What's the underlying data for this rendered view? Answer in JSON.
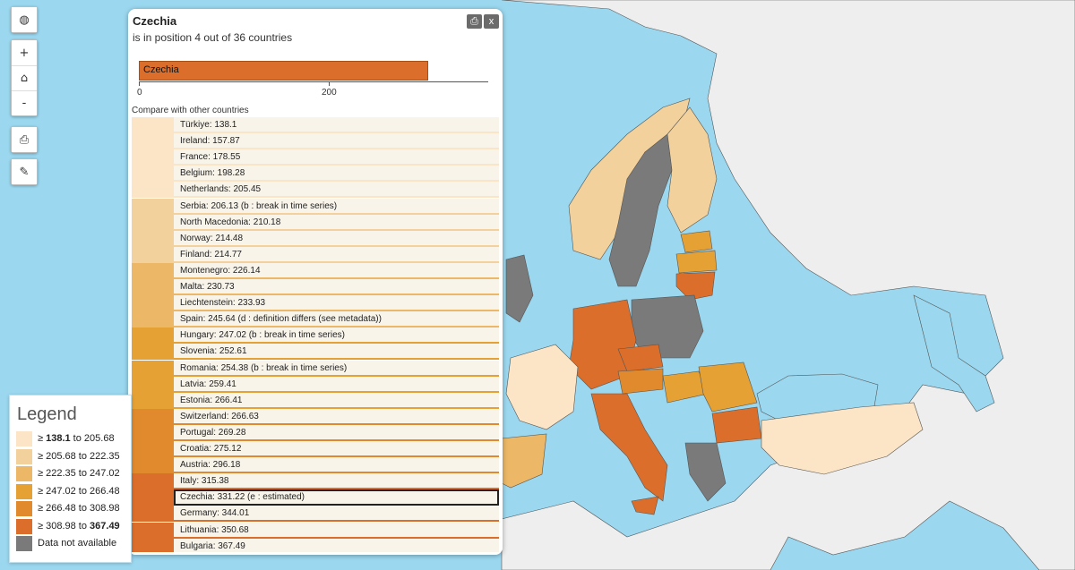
{
  "panel": {
    "title": "Czechia",
    "subtitle": "is in position 4 out of 36 countries",
    "print_icon": "printer-icon",
    "close_label": "x",
    "compare_label": "Compare with other countries",
    "bar": {
      "label": "Czechia",
      "value": 331.22,
      "axis_max": 400,
      "ticks": [
        "0",
        "200"
      ]
    }
  },
  "rows": [
    {
      "label": "Türkiye: 138.1",
      "color": "#fbe5c6"
    },
    {
      "label": "Ireland: 157.87",
      "color": "#fbe5c6"
    },
    {
      "label": "France: 178.55",
      "color": "#fbe5c6"
    },
    {
      "label": "Belgium: 198.28",
      "color": "#fbe5c6"
    },
    {
      "label": "Netherlands: 205.45",
      "color": "#fbe5c6"
    },
    {
      "label": "Serbia: 206.13 (b : break in time series)",
      "color": "#f2d19c"
    },
    {
      "label": "North Macedonia: 210.18",
      "color": "#f2d19c"
    },
    {
      "label": "Norway: 214.48",
      "color": "#f2d19c"
    },
    {
      "label": "Finland: 214.77",
      "color": "#f2d19c"
    },
    {
      "label": "Montenegro: 226.14",
      "color": "#ecb867"
    },
    {
      "label": "Malta: 230.73",
      "color": "#ecb867"
    },
    {
      "label": "Liechtenstein: 233.93",
      "color": "#ecb867"
    },
    {
      "label": "Spain: 245.64 (d : definition differs (see metadata))",
      "color": "#ecb867"
    },
    {
      "label": "Hungary: 247.02 (b : break in time series)",
      "color": "#e5a134"
    },
    {
      "label": "Slovenia: 252.61",
      "color": "#e5a134"
    },
    {
      "label": "Romania: 254.38 (b : break in time series)",
      "color": "#e5a134"
    },
    {
      "label": "Latvia: 259.41",
      "color": "#e5a134"
    },
    {
      "label": "Estonia: 266.41",
      "color": "#e5a134"
    },
    {
      "label": "Switzerland: 266.63",
      "color": "#e18a2d"
    },
    {
      "label": "Portugal: 269.28",
      "color": "#e18a2d"
    },
    {
      "label": "Croatia: 275.12",
      "color": "#e18a2d"
    },
    {
      "label": "Austria: 296.18",
      "color": "#e18a2d"
    },
    {
      "label": "Italy: 315.38",
      "color": "#dc6e2b"
    },
    {
      "label": "Czechia: 331.22 (e : estimated)",
      "color": "#dc6e2b",
      "selected": true
    },
    {
      "label": "Germany: 344.01",
      "color": "#dc6e2b"
    },
    {
      "label": "Lithuania: 350.68",
      "color": "#dc6e2b"
    },
    {
      "label": "Bulgaria: 367.49",
      "color": "#dc6e2b"
    }
  ],
  "legend": {
    "title": "Legend",
    "items": [
      {
        "prefix": "≥ ",
        "bold": "138.1",
        "rest": " to 205.68",
        "color": "#fbe5c6"
      },
      {
        "prefix": "≥ 205.68 to 222.35",
        "bold": "",
        "rest": "",
        "color": "#f2d19c"
      },
      {
        "prefix": "≥ 222.35 to 247.02",
        "bold": "",
        "rest": "",
        "color": "#ecb867"
      },
      {
        "prefix": "≥ 247.02 to 266.48",
        "bold": "",
        "rest": "",
        "color": "#e5a134"
      },
      {
        "prefix": "≥ 266.48 to 308.98",
        "bold": "",
        "rest": "",
        "color": "#e18a2d"
      },
      {
        "prefix": "≥ 308.98 to ",
        "bold": "367.49",
        "rest": "",
        "color": "#dc6e2b"
      },
      {
        "prefix": "Data not available",
        "bold": "",
        "rest": "",
        "color": "#7a7a7a"
      }
    ]
  },
  "controls": {
    "globe_icon": "globe-icon",
    "zoom_in": "+",
    "home_icon": "home-icon",
    "zoom_out": "-",
    "print_icon": "printer-icon",
    "style_icon": "brush-icon"
  },
  "map_colors": {
    "sea": "#9bd8f0",
    "land_other": "#eeeeee",
    "no_data": "#7a7a7a"
  }
}
